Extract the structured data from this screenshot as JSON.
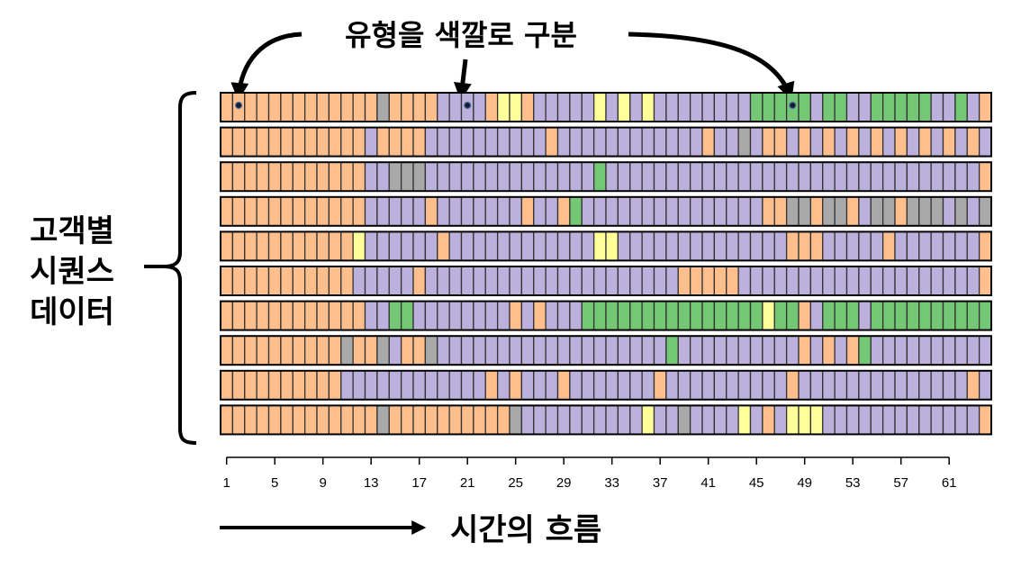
{
  "annotations": {
    "color_label": "유형을 색깔로 구분",
    "sequence_label_lines": [
      "고객별",
      "시퀀스",
      "데이터"
    ],
    "time_label": "시간의 흐름"
  },
  "colors": {
    "O": "#FFBF8C",
    "P": "#BCB0DC",
    "G": "#74C774",
    "Y": "#FFFF9A",
    "X": "#A9A9A9",
    "border": "#333333"
  },
  "chart_data": {
    "type": "heatmap",
    "title": "",
    "xlabel": "",
    "ylabel": "",
    "x_ticks": [
      "1",
      "5",
      "9",
      "13",
      "17",
      "21",
      "25",
      "29",
      "33",
      "37",
      "41",
      "45",
      "49",
      "53",
      "57",
      "61"
    ],
    "n_positions": 64,
    "n_customers": 10,
    "legend": "none",
    "encoding": "each row is one customer sequence; one letter per time position",
    "rows": [
      "OOOOOOOOOOOOOXOOOOPPPPOYYOPPPPPYPYPYPPPPPPPPGGGGGPGGPPGGGGGPPGPO",
      "OOOOOOOOOOOOPOOOOPPPPPPPPPPOPPPPPPPPPPPPOPPXPOOPOPOPOPOPOPOPOPOP",
      "OOOOOOOOOOOOPPXXXPPPPPPPPPPPPPPGPPPPPPPPPPPPPPPPPPPPPPPPPPPPPPPO",
      "OOOOOOOOOOOOPPPPPOPPPPPPPOPPOGPPPPPPPPPPPPPPPOOXXOXXOPXXOXXXPXPX",
      "OOOOOOOOOOOYPPPPPPOPPPPPPPPPPPPYYPPPPPPPPPPPPPPOOOPPPPPOPPPPPPPO",
      "OOOOOOOOOOOPPPPPOPPPPPPPPPPPPPPPPPPPPPOOOOOPPPPPPPPPPPPPPPPPPPPO",
      "OOOOOOOOOOOOPPGGPPPPPPPPOPOPPPGGGGGGGGGGGGGGGYGGOPGGGPGGGGGGGGGG",
      "OOOOOOOOOOXOOXPOOXPPPPPPPPPPPPPPPPPPPGPPPPPPPPPPOPOPOGPPPPPPPPPP",
      "OOOOOOOOOOPPPPPPPPPPPPOPOPPPOPPPPPPPOPPPPPPPPPPOPPPPPPPPPPPPPPOP",
      "OOOOOOOOOOOOOXOOOOOOOOOOXPPPPPPPPPPYPPXPPPPYPOPYYYPPPPPPPPPPPPPO"
    ]
  }
}
